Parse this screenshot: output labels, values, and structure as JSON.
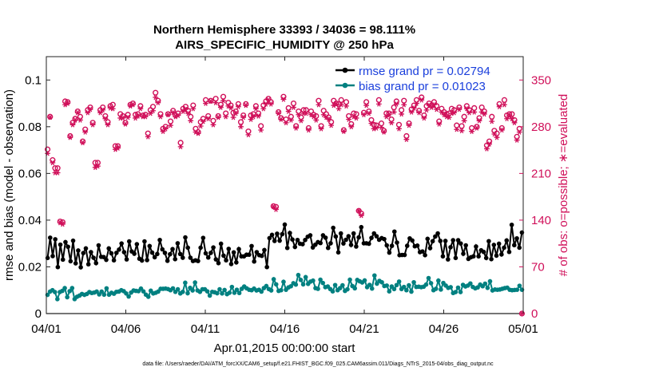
{
  "chart_data": {
    "type": "line",
    "title": "Northern Hemisphere 33393 / 34036 = 98.111%",
    "subtitle": "AIRS_SPECIFIC_HUMIDITY @ 250 hPa",
    "xlabel": "Apr.01,2015 00:00:00 start",
    "ylabel": "rmse and bias (model - observation)",
    "ylabel_right": "# of obs: o=possible; ∗=evaluated",
    "footnote": "data file: /Users/raeder/DAI/ATM_forcXX/CAM6_setup/f.e21.FHIST_BGC.f09_025.CAM6assim.011/Diags_NTrS_2015-04/obs_diag_output.nc",
    "xlim": [
      0,
      30
    ],
    "ylim": [
      0,
      0.11
    ],
    "ylim_right": [
      0,
      385
    ],
    "x_ticks": [
      0,
      5,
      10,
      15,
      20,
      25,
      30
    ],
    "x_tick_labels": [
      "04/01",
      "04/06",
      "04/11",
      "04/16",
      "04/21",
      "04/26",
      "05/01"
    ],
    "y_ticks": [
      0,
      0.02,
      0.04,
      0.06,
      0.08,
      0.1
    ],
    "y_tick_labels": [
      "0",
      "0.02",
      "0.04",
      "0.06",
      "0.08",
      "0.1"
    ],
    "y_ticks_right": [
      0,
      70,
      140,
      210,
      280,
      350
    ],
    "y_tick_labels_right": [
      "0",
      "70",
      "140",
      "210",
      "280",
      "350"
    ],
    "colors": {
      "rmse": "#000000",
      "bias": "#008080",
      "obs": "#d0105a",
      "legend_text": "#1a3fdc",
      "zero_line": "#c8c8c8"
    },
    "series": [
      {
        "name": "rmse grand pr = 0.02794",
        "marker": "filled-circle",
        "axis": "left",
        "values": [
          0.0238,
          0.0325,
          0.0246,
          0.0318,
          0.0199,
          0.0295,
          0.0231,
          0.0306,
          0.0286,
          0.0224,
          0.0312,
          0.0215,
          0.027,
          0.0198,
          0.0259,
          0.0279,
          0.0211,
          0.0263,
          0.0239,
          0.0216,
          0.0292,
          0.0243,
          0.0242,
          0.023,
          0.0279,
          0.0258,
          0.0228,
          0.026,
          0.0274,
          0.03,
          0.0263,
          0.0232,
          0.0309,
          0.0266,
          0.0256,
          0.0297,
          0.0235,
          0.0227,
          0.0309,
          0.0229,
          0.0289,
          0.0261,
          0.0241,
          0.0255,
          0.0315,
          0.0275,
          0.026,
          0.0226,
          0.0254,
          0.0276,
          0.0233,
          0.0301,
          0.0255,
          0.0239,
          0.0326,
          0.0282,
          0.0239,
          0.0225,
          0.0228,
          0.0225,
          0.0282,
          0.0324,
          0.0258,
          0.024,
          0.026,
          0.0283,
          0.0232,
          0.0216,
          0.0299,
          0.0248,
          0.0228,
          0.0277,
          0.0212,
          0.0262,
          0.0219,
          0.0276,
          0.0245,
          0.0245,
          0.0252,
          0.0252,
          0.0289,
          0.0223,
          0.0263,
          0.025,
          0.0247,
          0.0272,
          0.0199,
          0.0323,
          0.0337,
          0.0311,
          0.0342,
          0.0312,
          0.034,
          0.0381,
          0.0281,
          0.0345,
          0.0317,
          0.0285,
          0.0315,
          0.0299,
          0.0297,
          0.0315,
          0.0329,
          0.0335,
          0.0283,
          0.0295,
          0.0306,
          0.0302,
          0.0335,
          0.0325,
          0.0281,
          0.0301,
          0.0367,
          0.033,
          0.0262,
          0.0343,
          0.03,
          0.0316,
          0.0331,
          0.0294,
          0.0343,
          0.0287,
          0.0326,
          0.037,
          0.0301,
          0.0301,
          0.0299,
          0.0324,
          0.0343,
          0.0331,
          0.0316,
          0.0323,
          0.0319,
          0.0292,
          0.0261,
          0.029,
          0.0351,
          0.0304,
          0.025,
          0.0251,
          0.0251,
          0.029,
          0.0322,
          0.0313,
          0.0288,
          0.0291,
          0.0263,
          0.0266,
          0.025,
          0.032,
          0.028,
          0.031,
          0.033,
          0.0343,
          0.0311,
          0.0245,
          0.0311,
          0.0232,
          0.0284,
          0.0314,
          0.0238,
          0.0314,
          0.03,
          0.0256,
          0.0292,
          0.0234,
          0.0241,
          0.0245,
          0.0287,
          0.0245,
          0.0271,
          0.0264,
          0.0238,
          0.031,
          0.0233,
          0.0294,
          0.0248,
          0.0299,
          0.0253,
          0.0282,
          0.0313,
          0.0264,
          0.038,
          0.0293,
          0.0322,
          0.0282,
          0.0347
        ]
      },
      {
        "name": "bias grand pr = 0.01023",
        "marker": "filled-circle",
        "axis": "left",
        "values": [
          0.008,
          0.0094,
          0.01,
          0.0092,
          0.0062,
          0.0092,
          0.0097,
          0.0109,
          0.007,
          0.0096,
          0.0109,
          0.0062,
          0.0072,
          0.0077,
          0.0084,
          0.008,
          0.0084,
          0.0092,
          0.0088,
          0.009,
          0.0094,
          0.0082,
          0.0094,
          0.0081,
          0.0108,
          0.0081,
          0.0089,
          0.0085,
          0.0093,
          0.0094,
          0.01,
          0.0096,
          0.0086,
          0.0073,
          0.009,
          0.0099,
          0.0097,
          0.0096,
          0.0107,
          0.0095,
          0.0081,
          0.0072,
          0.0098,
          0.0086,
          0.0089,
          0.0094,
          0.0106,
          0.0106,
          0.0107,
          0.0105,
          0.01,
          0.0108,
          0.0093,
          0.0104,
          0.0086,
          0.0093,
          0.0132,
          0.0087,
          0.011,
          0.0099,
          0.0133,
          0.0099,
          0.0093,
          0.0104,
          0.0104,
          0.0095,
          0.0077,
          0.0093,
          0.0091,
          0.0087,
          0.0104,
          0.0086,
          0.0101,
          0.0083,
          0.0089,
          0.0114,
          0.0089,
          0.0102,
          0.0088,
          0.0106,
          0.0116,
          0.0108,
          0.0102,
          0.01,
          0.0107,
          0.0099,
          0.0102,
          0.0094,
          0.0109,
          0.0118,
          0.0105,
          0.0099,
          0.0147,
          0.0125,
          0.0097,
          0.01,
          0.0136,
          0.0102,
          0.0112,
          0.0117,
          0.013,
          0.0124,
          0.0165,
          0.0144,
          0.0125,
          0.0156,
          0.0127,
          0.0137,
          0.0141,
          0.0109,
          0.0106,
          0.0145,
          0.0131,
          0.0113,
          0.0116,
          0.0105,
          0.0095,
          0.0122,
          0.01,
          0.0109,
          0.0121,
          0.0097,
          0.0104,
          0.0145,
          0.0118,
          0.0108,
          0.0144,
          0.0138,
          0.0133,
          0.0142,
          0.0113,
          0.0123,
          0.0107,
          0.0163,
          0.0128,
          0.014,
          0.0134,
          0.0118,
          0.012,
          0.0095,
          0.0116,
          0.0105,
          0.0122,
          0.0137,
          0.0105,
          0.0114,
          0.01,
          0.0121,
          0.0094,
          0.0134,
          0.0114,
          0.0115,
          0.0113,
          0.0115,
          0.0124,
          0.0152,
          0.013,
          0.01,
          0.0106,
          0.0141,
          0.0103,
          0.0131,
          0.012,
          0.011,
          0.0113,
          0.0088,
          0.0092,
          0.0111,
          0.0092,
          0.0123,
          0.0116,
          0.012,
          0.0129,
          0.0114,
          0.0108,
          0.0112,
          0.0124,
          0.0117,
          0.0128,
          0.011,
          0.0138,
          0.0099,
          0.0103,
          0.0102,
          0.0103,
          0.0106,
          0.0109,
          0.0111,
          0.0102,
          0.01,
          0.0101,
          0.0102,
          0.0119,
          0.0102
        ]
      }
    ],
    "obs_possible": {
      "name": "possible",
      "marker": "o",
      "axis": "right",
      "values": [
        246,
        295,
        230,
        218,
        218,
        138,
        137,
        318,
        317,
        266,
        286,
        292,
        303,
        295,
        258,
        276,
        305,
        309,
        286,
        226,
        226,
        305,
        309,
        296,
        287,
        311,
        313,
        251,
        251,
        299,
        296,
        286,
        298,
        313,
        315,
        298,
        299,
        311,
        297,
        298,
        270,
        305,
        310,
        331,
        319,
        299,
        277,
        280,
        299,
        288,
        304,
        297,
        300,
        256,
        307,
        310,
        304,
        295,
        312,
        277,
        272,
        287,
        292,
        320,
        296,
        319,
        289,
        322,
        296,
        313,
        325,
        300,
        316,
        312,
        301,
        303,
        314,
        287,
        297,
        314,
        273,
        297,
        299,
        311,
        300,
        281,
        312,
        318,
        322,
        317,
        161,
        160,
        302,
        293,
        325,
        291,
        308,
        295,
        315,
        281,
        303,
        294,
        305,
        305,
        278,
        303,
        298,
        296,
        319,
        281,
        304,
        299,
        294,
        287,
        319,
        315,
        314,
        320,
        275,
        317,
        296,
        284,
        300,
        299,
        154,
        150,
        301,
        317,
        303,
        290,
        283,
        282,
        320,
        285,
        274,
        300,
        300,
        291,
        309,
        318,
        283,
        305,
        319,
        266,
        285,
        306,
        312,
        320,
        304,
        324,
        297,
        311,
        315,
        312,
        317,
        311,
        288,
        307,
        302,
        299,
        300,
        307,
        305,
        282,
        309,
        281,
        295,
        311,
        305,
        278,
        308,
        280,
        293,
        309,
        303,
        252,
        258,
        295,
        274,
        270,
        314,
        278,
        320,
        297,
        299,
        299,
        290,
        265,
        277,
        0
      ]
    },
    "obs_evaluated": {
      "name": "evaluated",
      "marker": "*",
      "axis": "right",
      "values": [
        240,
        294,
        226,
        211,
        211,
        136,
        134,
        313,
        315,
        264,
        283,
        290,
        301,
        290,
        256,
        272,
        301,
        306,
        283,
        219,
        221,
        301,
        305,
        292,
        283,
        308,
        307,
        246,
        248,
        293,
        293,
        284,
        294,
        311,
        313,
        293,
        296,
        307,
        295,
        295,
        265,
        300,
        304,
        324,
        316,
        295,
        273,
        277,
        298,
        282,
        301,
        295,
        297,
        250,
        303,
        306,
        300,
        289,
        307,
        272,
        270,
        281,
        288,
        315,
        292,
        318,
        283,
        316,
        294,
        309,
        319,
        295,
        311,
        308,
        294,
        300,
        310,
        280,
        294,
        312,
        268,
        291,
        295,
        307,
        296,
        275,
        307,
        314,
        320,
        314,
        160,
        156,
        300,
        291,
        321,
        286,
        303,
        290,
        309,
        278,
        298,
        289,
        300,
        300,
        275,
        298,
        295,
        290,
        313,
        277,
        298,
        294,
        291,
        282,
        312,
        314,
        307,
        313,
        273,
        311,
        291,
        280,
        295,
        293,
        154,
        147,
        298,
        312,
        300,
        285,
        277,
        278,
        314,
        279,
        272,
        295,
        298,
        286,
        302,
        314,
        277,
        299,
        313,
        261,
        282,
        302,
        308,
        315,
        301,
        320,
        293,
        305,
        312,
        309,
        313,
        306,
        284,
        302,
        298,
        295,
        294,
        300,
        301,
        276,
        306,
        274,
        289,
        307,
        301,
        273,
        302,
        278,
        289,
        302,
        299,
        247,
        254,
        288,
        269,
        264,
        310,
        275,
        313,
        292,
        296,
        292,
        286,
        260,
        272,
        0
      ]
    }
  }
}
